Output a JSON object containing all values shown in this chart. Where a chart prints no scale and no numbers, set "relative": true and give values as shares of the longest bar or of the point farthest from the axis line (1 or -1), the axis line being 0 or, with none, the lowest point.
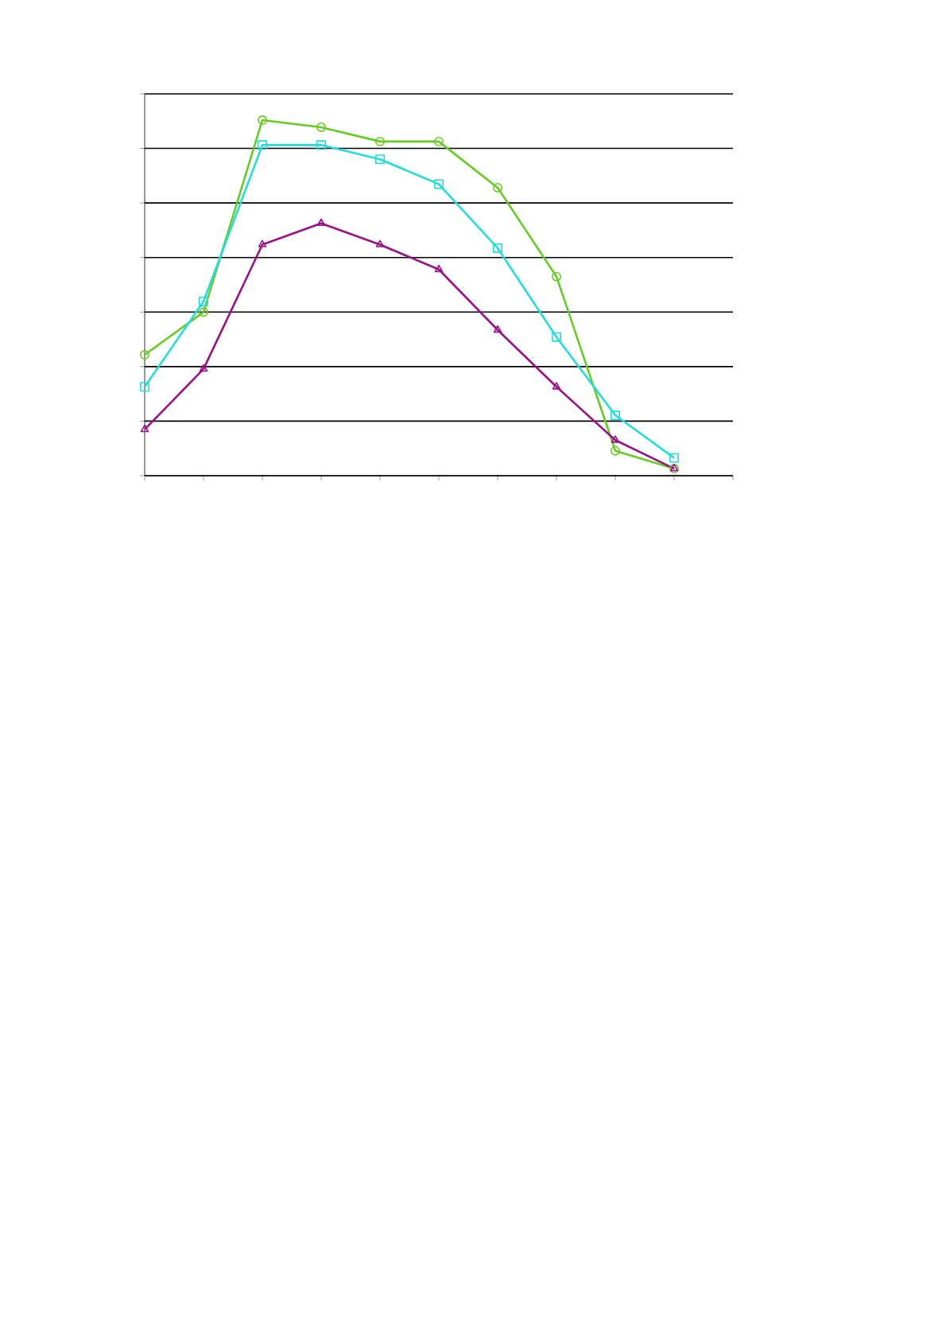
{
  "chart_data": {
    "type": "line",
    "relative": true,
    "grid": "y",
    "categories": [
      null,
      null,
      null,
      null,
      null,
      null,
      null,
      null,
      null,
      null
    ],
    "series": [
      {
        "color": "#66cc22",
        "marker": "circle",
        "values": [
          0.34,
          0.46,
          1,
          0.98,
          0.94,
          0.94,
          0.81,
          0.56,
          0.07,
          0.02
        ]
      },
      {
        "color": "#22dddd",
        "marker": "square",
        "values": [
          0.25,
          0.49,
          0.93,
          0.93,
          0.89,
          0.82,
          0.64,
          0.39,
          0.17,
          0.05
        ]
      },
      {
        "color": "#991188",
        "marker": "triangle",
        "values": [
          0.13,
          0.3,
          0.65,
          0.71,
          0.65,
          0.58,
          0.41,
          0.25,
          0.1,
          0.02
        ]
      }
    ]
  }
}
